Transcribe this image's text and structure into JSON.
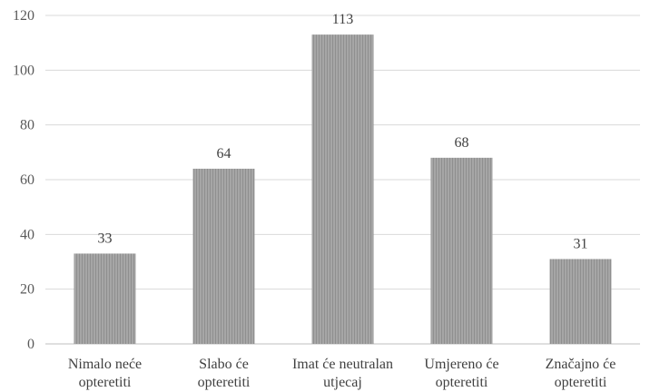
{
  "chart_data": {
    "type": "bar",
    "categories": [
      [
        "Nimalo neće",
        "opteretiti"
      ],
      [
        "Slabo će",
        "opteretiti"
      ],
      [
        "Imat će neutralan",
        "utjecaj"
      ],
      [
        "Umjereno će",
        "opteretiti"
      ],
      [
        "Značajno će",
        "opteretiti"
      ]
    ],
    "values": [
      33,
      64,
      113,
      68,
      31
    ],
    "data_labels": [
      "33",
      "64",
      "113",
      "68",
      "31"
    ],
    "ylim": [
      0,
      120
    ],
    "yticks": [
      0,
      20,
      40,
      60,
      80,
      100,
      120
    ],
    "grid": true,
    "legend": "none",
    "colors": {
      "bar": "#a6a6a6",
      "bar_hatch": "#8c8c8c",
      "grid": "#d9d9d9",
      "axis": "#bfbfbf"
    }
  }
}
